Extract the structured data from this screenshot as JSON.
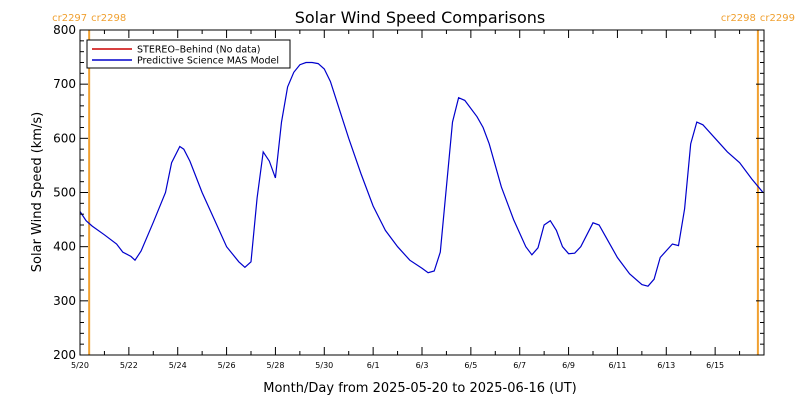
{
  "chart_data": {
    "type": "line",
    "title": "Solar Wind Speed Comparisons",
    "xlabel": "Month/Day from 2025-05-20 to 2025-06-16 (UT)",
    "ylabel": "Solar Wind Speed (km/s)",
    "xlim": [
      "2025-05-20",
      "2025-06-16"
    ],
    "ylim": [
      200,
      800
    ],
    "y_ticks": [
      200,
      300,
      400,
      500,
      600,
      700,
      800
    ],
    "x_ticks": [
      {
        "date": "2025-05-20",
        "label": "5/20"
      },
      {
        "date": "2025-05-22",
        "label": "5/22"
      },
      {
        "date": "2025-05-24",
        "label": "5/24"
      },
      {
        "date": "2025-05-26",
        "label": "5/26"
      },
      {
        "date": "2025-05-28",
        "label": "5/28"
      },
      {
        "date": "2025-05-30",
        "label": "5/30"
      },
      {
        "date": "2025-06-01",
        "label": "6/1"
      },
      {
        "date": "2025-06-03",
        "label": "6/3"
      },
      {
        "date": "2025-06-05",
        "label": "6/5"
      },
      {
        "date": "2025-06-07",
        "label": "6/7"
      },
      {
        "date": "2025-06-09",
        "label": "6/9"
      },
      {
        "date": "2025-06-11",
        "label": "6/11"
      },
      {
        "date": "2025-06-13",
        "label": "6/13"
      },
      {
        "date": "2025-06-15",
        "label": "6/15"
      }
    ],
    "carrington_markers": [
      {
        "date": "2025-05-20 09:00",
        "label_left": "cr2297",
        "label_right": "cr2298"
      },
      {
        "date": "2025-06-16 18:00",
        "label_left": "cr2298",
        "label_right": "cr2299"
      }
    ],
    "legend": {
      "placement": "top-left"
    },
    "series": [
      {
        "name": "STEREO–Behind (No data)",
        "color": "#cc0000",
        "points": []
      },
      {
        "name": "Predictive Science MAS Model",
        "color": "#0000cc",
        "points": [
          [
            "2025-05-20 00:00",
            465
          ],
          [
            "2025-05-20 06:00",
            448
          ],
          [
            "2025-05-20 12:00",
            438
          ],
          [
            "2025-05-21 00:00",
            422
          ],
          [
            "2025-05-21 12:00",
            405
          ],
          [
            "2025-05-21 18:00",
            390
          ],
          [
            "2025-05-22 02:00",
            382
          ],
          [
            "2025-05-22 06:00",
            375
          ],
          [
            "2025-05-22 12:00",
            392
          ],
          [
            "2025-05-23 00:00",
            445
          ],
          [
            "2025-05-23 12:00",
            500
          ],
          [
            "2025-05-23 18:00",
            555
          ],
          [
            "2025-05-24 02:00",
            585
          ],
          [
            "2025-05-24 06:00",
            580
          ],
          [
            "2025-05-24 12:00",
            558
          ],
          [
            "2025-05-25 00:00",
            500
          ],
          [
            "2025-05-25 12:00",
            450
          ],
          [
            "2025-05-26 00:00",
            400
          ],
          [
            "2025-05-26 12:00",
            372
          ],
          [
            "2025-05-26 18:00",
            362
          ],
          [
            "2025-05-27 00:00",
            372
          ],
          [
            "2025-05-27 06:00",
            490
          ],
          [
            "2025-05-27 12:00",
            575
          ],
          [
            "2025-05-27 18:00",
            558
          ],
          [
            "2025-05-28 00:00",
            527
          ],
          [
            "2025-05-28 06:00",
            630
          ],
          [
            "2025-05-28 12:00",
            695
          ],
          [
            "2025-05-28 18:00",
            722
          ],
          [
            "2025-05-29 00:00",
            736
          ],
          [
            "2025-05-29 06:00",
            740
          ],
          [
            "2025-05-29 12:00",
            740
          ],
          [
            "2025-05-29 18:00",
            738
          ],
          [
            "2025-05-30 00:00",
            728
          ],
          [
            "2025-05-30 06:00",
            705
          ],
          [
            "2025-05-30 12:00",
            670
          ],
          [
            "2025-05-31 00:00",
            600
          ],
          [
            "2025-05-31 12:00",
            535
          ],
          [
            "2025-06-01 00:00",
            475
          ],
          [
            "2025-06-01 12:00",
            430
          ],
          [
            "2025-06-02 00:00",
            400
          ],
          [
            "2025-06-02 12:00",
            375
          ],
          [
            "2025-06-03 00:00",
            360
          ],
          [
            "2025-06-03 06:00",
            352
          ],
          [
            "2025-06-03 12:00",
            355
          ],
          [
            "2025-06-03 18:00",
            390
          ],
          [
            "2025-06-04 06:00",
            630
          ],
          [
            "2025-06-04 12:00",
            675
          ],
          [
            "2025-06-04 18:00",
            670
          ],
          [
            "2025-06-05 06:00",
            640
          ],
          [
            "2025-06-05 12:00",
            620
          ],
          [
            "2025-06-05 18:00",
            590
          ],
          [
            "2025-06-06 06:00",
            510
          ],
          [
            "2025-06-06 18:00",
            450
          ],
          [
            "2025-06-07 06:00",
            400
          ],
          [
            "2025-06-07 12:00",
            385
          ],
          [
            "2025-06-07 18:00",
            398
          ],
          [
            "2025-06-08 00:00",
            440
          ],
          [
            "2025-06-08 06:00",
            448
          ],
          [
            "2025-06-08 12:00",
            430
          ],
          [
            "2025-06-08 18:00",
            400
          ],
          [
            "2025-06-09 00:00",
            387
          ],
          [
            "2025-06-09 06:00",
            388
          ],
          [
            "2025-06-09 12:00",
            400
          ],
          [
            "2025-06-10 00:00",
            444
          ],
          [
            "2025-06-10 06:00",
            440
          ],
          [
            "2025-06-10 12:00",
            420
          ],
          [
            "2025-06-11 00:00",
            380
          ],
          [
            "2025-06-11 12:00",
            350
          ],
          [
            "2025-06-12 00:00",
            330
          ],
          [
            "2025-06-12 06:00",
            327
          ],
          [
            "2025-06-12 12:00",
            340
          ],
          [
            "2025-06-12 18:00",
            380
          ],
          [
            "2025-06-13 06:00",
            405
          ],
          [
            "2025-06-13 12:00",
            402
          ],
          [
            "2025-06-13 18:00",
            470
          ],
          [
            "2025-06-14 00:00",
            590
          ],
          [
            "2025-06-14 06:00",
            630
          ],
          [
            "2025-06-14 12:00",
            625
          ],
          [
            "2025-06-15 00:00",
            600
          ],
          [
            "2025-06-15 12:00",
            575
          ],
          [
            "2025-06-16 00:00",
            555
          ],
          [
            "2025-06-16 12:00",
            525
          ],
          [
            "2025-06-16 23:00",
            500
          ]
        ]
      }
    ]
  }
}
